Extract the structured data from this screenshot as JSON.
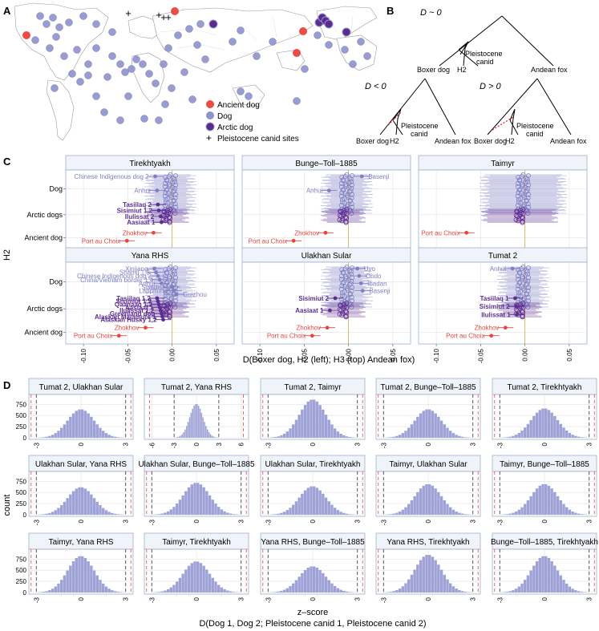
{
  "panel_labels": {
    "a": "A",
    "b": "B",
    "c": "C",
    "d": "D"
  },
  "map": {
    "legend": [
      {
        "label": "Ancient dog",
        "color": "#ee4b44"
      },
      {
        "label": "Dog",
        "color": "#8e92cd"
      },
      {
        "label": "Arctic dog",
        "color": "#5b2c8e"
      },
      {
        "label": "Pleistocene canid sites",
        "symbol": "+"
      }
    ]
  },
  "trees": {
    "top_label": "D ~ 0",
    "left_label": "D < 0",
    "right_label": "D > 0",
    "leaves": {
      "boxer": "Boxer dog",
      "h2": "H2",
      "canid_line1": "Pleistocene",
      "canid_line2": "canid",
      "fox": "Andean fox"
    }
  },
  "colors": {
    "ancient": "#e8453d",
    "dog": "#7f7fc4",
    "arctic": "#5e2d91",
    "grid": "#e2e2e2",
    "strip": "#f1f3fa",
    "strip_border": "#9fb0cf",
    "hist": "#9fa2d6",
    "zero": "#d9a74b"
  },
  "chart_data": {
    "panel_c": {
      "type": "scatter",
      "ylabel": "H2",
      "xlabel": "D(Boxer dog, H2 (left); H3 (top) Andean fox)",
      "categories": [
        "Dog",
        "Arctic dogs",
        "Ancient dog"
      ],
      "xlim": [
        -0.12,
        0.07
      ],
      "xticks": [
        "-0.10",
        "-0.05",
        "0.00",
        "0.05"
      ],
      "facets": [
        {
          "title": "Tirekhtyakh",
          "points": [
            {
              "label": "Chinese Indigenous dog 2",
              "x": -0.019,
              "group": "dog"
            },
            {
              "label": "Anhui",
              "x": -0.017,
              "group": "dog"
            },
            {
              "label": "Tasiilaq 2",
              "x": -0.016,
              "group": "arctic"
            },
            {
              "label": "Sisimiut 1,2",
              "x": -0.015,
              "group": "arctic"
            },
            {
              "label": "Ilulissat 2",
              "x": -0.013,
              "group": "arctic"
            },
            {
              "label": "Aasiaat 1",
              "x": -0.012,
              "group": "arctic"
            },
            {
              "label": "Zhokhov",
              "x": -0.021,
              "group": "ancient"
            },
            {
              "label": "Port au Choix",
              "x": -0.051,
              "group": "ancient"
            }
          ]
        },
        {
          "title": "Bunge–Toll–1885",
          "points": [
            {
              "label": "Basenji",
              "x": 0.015,
              "group": "dog"
            },
            {
              "label": "Anhui",
              "x": -0.022,
              "group": "dog"
            },
            {
              "label": "Zhokhov",
              "x": -0.026,
              "group": "ancient"
            },
            {
              "label": "Port au Choix",
              "x": -0.062,
              "group": "ancient"
            }
          ]
        },
        {
          "title": "Taimyr",
          "points": [
            {
              "label": "Port au Choix",
              "x": -0.066,
              "group": "ancient"
            }
          ]
        },
        {
          "title": "Yana RHS",
          "points": [
            {
              "label": "Xinjiang",
              "x": -0.02,
              "group": "dog"
            },
            {
              "label": "Shanxi 1,3",
              "x": -0.018,
              "group": "dog"
            },
            {
              "label": "Chinese Indigenous dog 2",
              "x": -0.016,
              "group": "dog"
            },
            {
              "label": "China/Vietnam border 1,4",
              "x": -0.014,
              "group": "dog"
            },
            {
              "label": "Anhui",
              "x": -0.012,
              "group": "dog"
            },
            {
              "label": "Swedish",
              "x": 0.0,
              "group": "dog"
            },
            {
              "label": "Lapphund",
              "x": 0.002,
              "group": "dog"
            },
            {
              "label": "Guizhou",
              "x": 0.005,
              "group": "dog"
            },
            {
              "label": "Tasiilaq 1,2",
              "x": -0.017,
              "group": "arctic"
            },
            {
              "label": "Sisimiut 1,2",
              "x": -0.016,
              "group": "arctic"
            },
            {
              "label": "Qaanaaq 1,2",
              "x": -0.015,
              "group": "arctic"
            },
            {
              "label": "Aasiaat 1",
              "x": -0.014,
              "group": "arctic"
            },
            {
              "label": "Ilulissat 1,2",
              "x": -0.013,
              "group": "arctic"
            },
            {
              "label": "Greenland dog",
              "x": -0.012,
              "group": "arctic"
            },
            {
              "label": "Alaskan Malamute 1",
              "x": -0.011,
              "group": "arctic"
            },
            {
              "label": "Alaskan Husky 1,2",
              "x": -0.01,
              "group": "arctic"
            },
            {
              "label": "Zhokhov",
              "x": -0.03,
              "group": "ancient"
            },
            {
              "label": "Port au Choix",
              "x": -0.06,
              "group": "ancient"
            }
          ]
        },
        {
          "title": "Ulakhan Sular",
          "points": [
            {
              "label": "Uyo",
              "x": 0.01,
              "group": "dog"
            },
            {
              "label": "Ondo",
              "x": 0.012,
              "group": "dog"
            },
            {
              "label": "Ibadan",
              "x": 0.014,
              "group": "dog"
            },
            {
              "label": "Basenji",
              "x": 0.016,
              "group": "dog"
            },
            {
              "label": "Sisimiut 2",
              "x": -0.015,
              "group": "arctic"
            },
            {
              "label": "Aasiaat 1",
              "x": -0.021,
              "group": "arctic"
            },
            {
              "label": "Zhokhov",
              "x": -0.024,
              "group": "ancient"
            },
            {
              "label": "Port au Choix",
              "x": -0.041,
              "group": "ancient"
            }
          ]
        },
        {
          "title": "Tumat 2",
          "points": [
            {
              "label": "Anhui",
              "x": -0.014,
              "group": "dog"
            },
            {
              "label": "Tasiilaq 1",
              "x": -0.011,
              "group": "arctic"
            },
            {
              "label": "Sisimiut 2",
              "x": -0.01,
              "group": "arctic"
            },
            {
              "label": "Ilulissat 1",
              "x": -0.009,
              "group": "arctic"
            },
            {
              "label": "Zhokhov",
              "x": -0.022,
              "group": "ancient"
            },
            {
              "label": "Port au Choix",
              "x": -0.038,
              "group": "ancient"
            }
          ]
        }
      ]
    },
    "panel_d": {
      "type": "bar",
      "ylabel": "count",
      "xlabel": "z–score",
      "caption": "D(Dog 1, Dog 2; Pleistocene canid 1, Pleistocene canid 2)",
      "yticks": [
        "0",
        "250",
        "500",
        "750"
      ],
      "xticks": [
        "-3",
        "0",
        "3"
      ],
      "xticks_wide": [
        "-6",
        "-3",
        "0",
        "3",
        "6"
      ],
      "ylim": [
        0,
        900
      ],
      "facets": [
        {
          "title": "Tumat 2, Ulakhan Sular",
          "peak": 640
        },
        {
          "title": "Tumat 2, Yana RHS",
          "peak": 760,
          "wide": true
        },
        {
          "title": "Tumat 2, Taimyr",
          "peak": 860
        },
        {
          "title": "Tumat 2, Bunge–Toll–1885",
          "peak": 640
        },
        {
          "title": "Tumat 2, Tirekhtyakh",
          "peak": 660
        },
        {
          "title": "Ulakhan Sular, Yana RHS",
          "peak": 620
        },
        {
          "title": "Ulakhan Sular, Bunge–Toll–1885",
          "peak": 720
        },
        {
          "title": "Ulakhan Sular, Tirekhtyakh",
          "peak": 640
        },
        {
          "title": "Taimyr, Ulakhan Sular",
          "peak": 690
        },
        {
          "title": "Taimyr, Bunge–Toll–1885",
          "peak": 690
        },
        {
          "title": "Taimyr, Yana RHS",
          "peak": 820
        },
        {
          "title": "Taimyr, Tirekhtyakh",
          "peak": 700
        },
        {
          "title": "Yana RHS, Bunge–Toll–1885",
          "peak": 590
        },
        {
          "title": "Yana RHS, Tirekhtyakh",
          "peak": 850
        },
        {
          "title": "Bunge–Toll–1885, Tirekhtyakh",
          "peak": 820
        }
      ]
    }
  }
}
